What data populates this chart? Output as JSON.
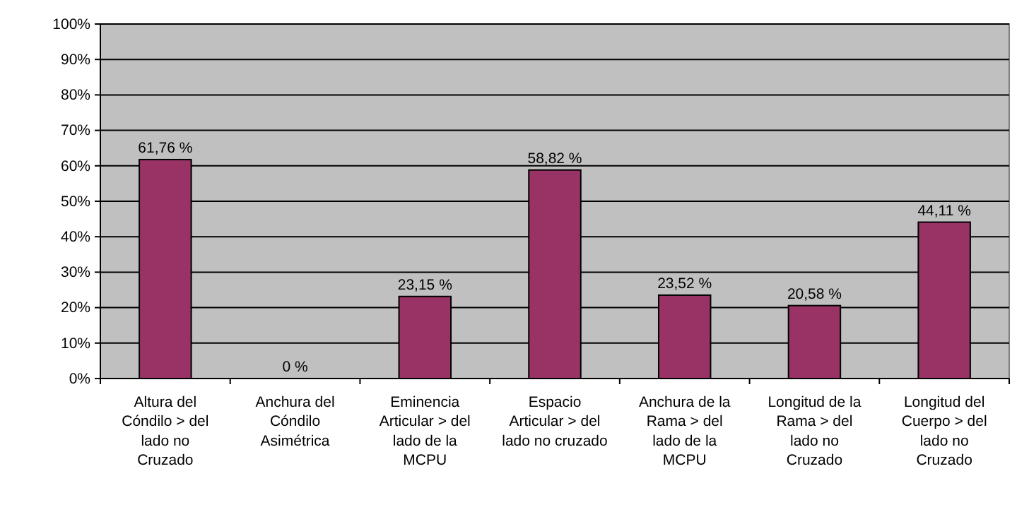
{
  "chart_data": {
    "type": "bar",
    "categories": [
      "Altura del Cóndilo > del lado no Cruzado",
      "Anchura del Cóndilo Asimétrica",
      "Eminencia Articular > del lado de la MCPU",
      "Espacio Articular > del lado no cruzado",
      "Anchura de la Rama > del lado de la MCPU",
      "Longitud de la Rama > del lado no Cruzado",
      "Longitud del Cuerpo > del lado no Cruzado"
    ],
    "values": [
      61.76,
      0,
      23.15,
      58.82,
      23.52,
      20.58,
      44.11
    ],
    "value_labels": [
      "61,76 %",
      "0 %",
      "23,15 %",
      "58,82 %",
      "23,52 %",
      "20,58 %",
      "44,11 %"
    ],
    "color": "#993366",
    "ylim": [
      0,
      100
    ],
    "yticks": [
      {
        "value": 0,
        "label": "0%"
      },
      {
        "value": 10,
        "label": "10%"
      },
      {
        "value": 20,
        "label": "20%"
      },
      {
        "value": 30,
        "label": "30%"
      },
      {
        "value": 40,
        "label": "40%"
      },
      {
        "value": 50,
        "label": "50%"
      },
      {
        "value": 60,
        "label": "60%"
      },
      {
        "value": 70,
        "label": "70%"
      },
      {
        "value": 80,
        "label": "80%"
      },
      {
        "value": 90,
        "label": "90%"
      },
      {
        "value": 100,
        "label": "100%"
      }
    ],
    "grid": "y"
  }
}
